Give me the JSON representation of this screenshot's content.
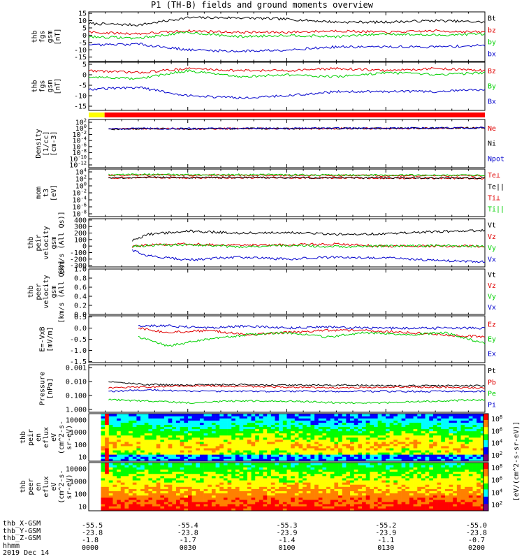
{
  "title": "P1 (TH-B) fields and ground moments overview",
  "colors": {
    "black": "#000000",
    "red": "#e00000",
    "green": "#00d000",
    "blue": "#0000cc",
    "yellow": "#ffff00",
    "bar_red": "#ff0000",
    "spec_colorbar": [
      "#ffffff",
      "#800080",
      "#0000ff",
      "#00ffff",
      "#00ff00",
      "#ffff00",
      "#ff8000",
      "#ff0000"
    ]
  },
  "footer": {
    "rows": [
      {
        "label": "thb_X-GSM",
        "ticks": [
          "-55.5",
          "-55.4",
          "-55.3",
          "-55.2",
          "-55.0"
        ]
      },
      {
        "label": "thb_Y-GSM",
        "ticks": [
          "-23.8",
          "-23.8",
          "-23.9",
          "-23.9",
          "-23.8"
        ]
      },
      {
        "label": "thb_Z-GSM",
        "ticks": [
          "-1.8",
          "-1.7",
          "-1.4",
          "-1.1",
          "-0.7"
        ]
      },
      {
        "label": "hhmm",
        "ticks": [
          "0000",
          "0030",
          "0100",
          "0130",
          "0200"
        ]
      }
    ],
    "date": "2019 Dec 14"
  },
  "chart_data": [
    {
      "type": "line",
      "ylabel": [
        "thb",
        "fgs",
        "gsm",
        "[nT]"
      ],
      "yticks": [
        "-15",
        "-10",
        "-5",
        "0",
        "5",
        "10",
        "15"
      ],
      "ylim": [
        -18,
        16
      ],
      "x": [
        0,
        0.25,
        0.5,
        0.75,
        1.0,
        1.25,
        1.5,
        1.75,
        2.0
      ],
      "xlabel": "hhmm",
      "series": [
        {
          "name": "Bt",
          "color": "#000000",
          "values": [
            8,
            7,
            12,
            12,
            11,
            9,
            9,
            10,
            9
          ]
        },
        {
          "name": "bz",
          "color": "#e00000",
          "values": [
            2,
            1,
            3,
            2,
            2,
            3,
            2,
            3,
            2
          ]
        },
        {
          "name": "by",
          "color": "#00d000",
          "values": [
            -1,
            -2,
            2,
            -1,
            0,
            -1,
            1,
            0,
            1
          ]
        },
        {
          "name": "bx",
          "color": "#0000cc",
          "values": [
            -7,
            -6,
            -10,
            -11,
            -10,
            -8,
            -8,
            -8,
            -7
          ]
        }
      ]
    },
    {
      "type": "line",
      "ylabel": [
        "thb",
        "fgs",
        "gsm",
        "[nT]"
      ],
      "yticks": [
        "-15",
        "-10",
        "-5",
        "0",
        "5"
      ],
      "ylim": [
        -17,
        6
      ],
      "x": [
        0,
        0.25,
        0.5,
        0.75,
        1.0,
        1.25,
        1.5,
        1.75,
        2.0
      ],
      "series": [
        {
          "name": "Bz",
          "color": "#e00000",
          "values": [
            2,
            1,
            3,
            2,
            2,
            3,
            2,
            3,
            2
          ]
        },
        {
          "name": "By",
          "color": "#00d000",
          "values": [
            -1,
            -2,
            2,
            -1,
            0,
            -1,
            1,
            0,
            1
          ]
        },
        {
          "name": "Bx",
          "color": "#0000cc",
          "values": [
            -7,
            -6,
            -10,
            -11,
            -10,
            -8,
            -8,
            -8,
            -7
          ]
        }
      ]
    },
    {
      "type": "bar",
      "ylabel": [],
      "segments": [
        {
          "from": 0,
          "to": 0.08,
          "color": "#ffff00"
        },
        {
          "from": 0.08,
          "to": 2.0,
          "color": "#ff0000"
        }
      ]
    },
    {
      "type": "line",
      "ylabel": [
        "Density",
        "[1/cc]",
        "[cm-3]"
      ],
      "yticks": [
        "10^2",
        "10^0",
        "10^-2",
        "10^-4",
        "10^-6",
        "10^-8",
        "10^-10",
        "10^-12"
      ],
      "log_scale": true,
      "x": [
        0.1,
        0.3,
        0.5,
        0.75,
        1.0,
        1.25,
        1.5,
        1.75,
        2.0
      ],
      "series": [
        {
          "name": "Ne",
          "color": "#e00000",
          "values": [
            0.5,
            0.8,
            0.7,
            0.9,
            0.8,
            1.0,
            0.9,
            1.2,
            1.5
          ]
        },
        {
          "name": "Ni",
          "color": "#000000",
          "values": [
            0.5,
            0.8,
            0.7,
            0.9,
            0.8,
            1.0,
            0.9,
            1.2,
            1.5
          ]
        },
        {
          "name": "Npot",
          "color": "#0000cc",
          "values": [
            0.6,
            0.9,
            0.8,
            1.0,
            0.9,
            1.1,
            1.0,
            1.3,
            1.7
          ]
        }
      ]
    },
    {
      "type": "line",
      "ylabel": [
        "mom",
        "t3",
        "[eV]"
      ],
      "yticks": [
        "10^4",
        "10^2",
        "10^0",
        "10^-2",
        "10^-4",
        "10^-6",
        "10^-8"
      ],
      "log_scale": true,
      "x": [
        0.1,
        0.3,
        0.5,
        0.75,
        1.0,
        1.25,
        1.5,
        1.75,
        2.0
      ],
      "series": [
        {
          "name": "Te⊥",
          "color": "#e00000",
          "values": [
            150,
            250,
            200,
            230,
            200,
            180,
            170,
            150,
            140
          ]
        },
        {
          "name": "Te||",
          "color": "#000000",
          "values": [
            180,
            300,
            250,
            260,
            230,
            210,
            200,
            180,
            160
          ]
        },
        {
          "name": "Ti⊥",
          "color": "#e00000",
          "values": [
            1000,
            1300,
            1100,
            1200,
            1000,
            900,
            850,
            800,
            800
          ]
        },
        {
          "name": "Ti||",
          "color": "#00d000",
          "values": [
            1500,
            1800,
            1500,
            1600,
            1400,
            1300,
            1200,
            1100,
            1000
          ]
        }
      ]
    },
    {
      "type": "line",
      "ylabel": [
        "thb",
        "peir",
        "velocity",
        "gsm",
        "[km/s (All Qs)]"
      ],
      "yticks": [
        "-300",
        "-200",
        "-100",
        "0",
        "100",
        "200",
        "300",
        "400"
      ],
      "ylim": [
        -320,
        420
      ],
      "x": [
        0.22,
        0.3,
        0.5,
        0.75,
        1.0,
        1.25,
        1.5,
        1.75,
        2.0
      ],
      "series": [
        {
          "name": "Vt",
          "color": "#000000",
          "values": [
            80,
            180,
            230,
            200,
            210,
            180,
            190,
            220,
            240
          ]
        },
        {
          "name": "Vz",
          "color": "#e00000",
          "values": [
            -10,
            20,
            30,
            10,
            20,
            30,
            0,
            0,
            0
          ]
        },
        {
          "name": "Vy",
          "color": "#00d000",
          "values": [
            0,
            10,
            20,
            -10,
            10,
            -10,
            0,
            10,
            -10
          ]
        },
        {
          "name": "Vx",
          "color": "#0000cc",
          "values": [
            -60,
            -150,
            -210,
            -170,
            -200,
            -170,
            -180,
            -220,
            -240
          ]
        }
      ]
    },
    {
      "type": "line",
      "ylabel": [
        "thb",
        "peer",
        "velocity",
        "gsm",
        "[km/s (All Qs)]"
      ],
      "yticks": [
        "0.0",
        "0.2",
        "0.4",
        "0.6",
        "0.8",
        "1.0"
      ],
      "ylim": [
        0,
        1
      ],
      "series": [
        {
          "name": "Vt",
          "color": "#000000",
          "values": []
        },
        {
          "name": "Vz",
          "color": "#e00000",
          "values": []
        },
        {
          "name": "Vy",
          "color": "#00d000",
          "values": []
        },
        {
          "name": "Vx",
          "color": "#0000cc",
          "values": []
        }
      ]
    },
    {
      "type": "line",
      "ylabel": [
        "E=-VxB",
        "[mV/m]"
      ],
      "yticks": [
        "-1.5",
        "-1.0",
        "-0.5",
        "0.0",
        "0.5"
      ],
      "ylim": [
        -1.55,
        0.55
      ],
      "x": [
        0.25,
        0.4,
        0.6,
        0.8,
        1.0,
        1.2,
        1.4,
        1.6,
        1.8,
        2.0
      ],
      "series": [
        {
          "name": "Ez",
          "color": "#e00000",
          "values": [
            0.0,
            -0.2,
            -0.1,
            -0.3,
            -0.2,
            -0.1,
            -0.1,
            -0.2,
            -0.3,
            -0.4
          ]
        },
        {
          "name": "Ey",
          "color": "#00d000",
          "values": [
            -0.4,
            -0.8,
            -0.5,
            -0.3,
            -0.2,
            -0.4,
            -0.2,
            -0.3,
            -0.2,
            -0.7
          ]
        },
        {
          "name": "Ex",
          "color": "#0000cc",
          "values": [
            0.1,
            0.1,
            0.0,
            0.1,
            0.0,
            0.05,
            0.0,
            0.0,
            0.0,
            0.0
          ]
        }
      ]
    },
    {
      "type": "line",
      "ylabel": [
        "Pressure",
        "[nPa]"
      ],
      "yticks": [
        "0.001",
        "0.010",
        "0.100",
        "1.000"
      ],
      "log_scale": true,
      "x": [
        0.1,
        0.3,
        0.5,
        0.75,
        1.0,
        1.25,
        1.5,
        1.75,
        2.0
      ],
      "series": [
        {
          "name": "Pt",
          "color": "#000000",
          "values": [
            0.09,
            0.06,
            0.055,
            0.06,
            0.055,
            0.055,
            0.05,
            0.05,
            0.05
          ]
        },
        {
          "name": "Pb",
          "color": "#e00000",
          "values": [
            0.035,
            0.04,
            0.05,
            0.045,
            0.04,
            0.035,
            0.04,
            0.04,
            0.035
          ]
        },
        {
          "name": "Pe",
          "color": "#00d000",
          "values": [
            0.005,
            0.004,
            0.003,
            0.004,
            0.004,
            0.003,
            0.003,
            0.004,
            0.005
          ]
        },
        {
          "name": "Pi",
          "color": "#0000cc",
          "values": [
            0.02,
            0.025,
            0.02,
            0.02,
            0.02,
            0.02,
            0.02,
            0.02,
            0.02
          ]
        }
      ]
    },
    {
      "type": "heatmap",
      "ylabel": [
        "thb",
        "peir",
        "en",
        "eflux",
        "eV",
        "(cm^2-s-",
        "sr-eV)"
      ],
      "yticks": [
        "10",
        "100",
        "1000",
        "10000"
      ],
      "log_scale": true,
      "colorbar_ticks": [
        "10^2",
        "10^4",
        "10^6",
        "10^8"
      ],
      "colorbar_label": "[eV/(cm^2-s-sr-eV)]"
    },
    {
      "type": "heatmap",
      "ylabel": [
        "thb",
        "peer",
        "en",
        "eflux",
        "eV",
        "(cm^2-s-",
        "sr-eV)"
      ],
      "yticks": [
        "10",
        "100",
        "1000",
        "10000"
      ],
      "log_scale": true,
      "colorbar_ticks": [
        "10^2",
        "10^4",
        "10^6",
        "10^8"
      ],
      "colorbar_label": "[eV/(cm^2-s-sr-eV)]"
    }
  ]
}
